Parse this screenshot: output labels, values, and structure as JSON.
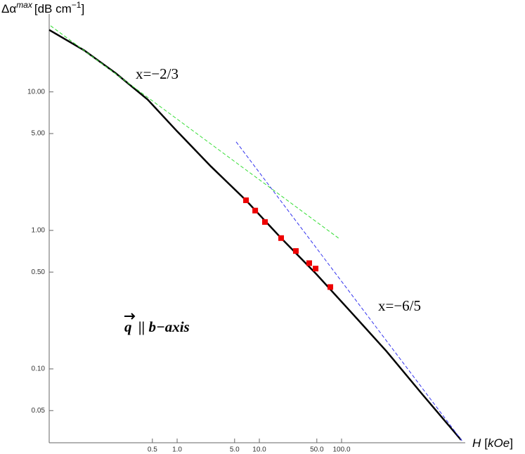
{
  "chart_data": {
    "type": "line",
    "x_scale": "log",
    "y_scale": "log",
    "y_label_parts": [
      "Δα",
      "max",
      "[dB cm",
      "−1",
      "]"
    ],
    "x_label_parts": [
      "H",
      "[",
      "kOe",
      "]"
    ],
    "annotations": [
      "x=−2/3",
      "x=−6/5",
      "q",
      "|| b−axis"
    ],
    "xlim": [
      0.0278,
      3070
    ],
    "ylim": [
      0.0293,
      30.6
    ],
    "xticks": [
      0.5,
      1,
      5,
      10,
      50,
      100
    ],
    "xtick_labels": [
      "0.5",
      "1.0",
      "5.0",
      "10.0",
      "50.0",
      "100.0"
    ],
    "yticks": [
      {
        "value": 0.05,
        "label": "0.05"
      },
      {
        "value": 0.1,
        "label": "0.10"
      },
      {
        "value": 0.5,
        "label": "0.50"
      },
      {
        "value": 1,
        "label": "1.00"
      },
      {
        "value": 5,
        "label": "5.00"
      },
      {
        "value": 10,
        "label": "10.00"
      }
    ],
    "series": [
      {
        "style": "solid",
        "color": "#000000",
        "x": [
          0.0278,
          0.0744,
          0.18,
          0.438,
          0.962,
          2.57,
          6.88,
          18.4,
          49.2,
          132,
          352,
          942,
          2838
        ],
        "values": [
          28.0,
          19.9,
          13.6,
          8.8,
          5.32,
          2.9,
          1.65,
          0.88,
          0.484,
          0.255,
          0.134,
          0.0664,
          0.0307
        ]
      },
      {
        "style": "dashed",
        "color": "#33dd33",
        "x": [
          0.0289,
          94.3
        ],
        "values": [
          30.0,
          0.869
        ]
      },
      {
        "style": "dashed",
        "color": "#3333ee",
        "x": [
          5.22,
          2951
        ],
        "values": [
          4.36,
          0.03
        ]
      },
      {
        "style": "markers",
        "color": "#ee0000",
        "x": [
          6.88,
          8.9,
          11.7,
          18.4,
          27.8,
          40.4,
          48.3,
          73
        ],
        "values": [
          1.65,
          1.39,
          1.15,
          0.88,
          0.71,
          0.58,
          0.53,
          0.39
        ]
      }
    ]
  }
}
